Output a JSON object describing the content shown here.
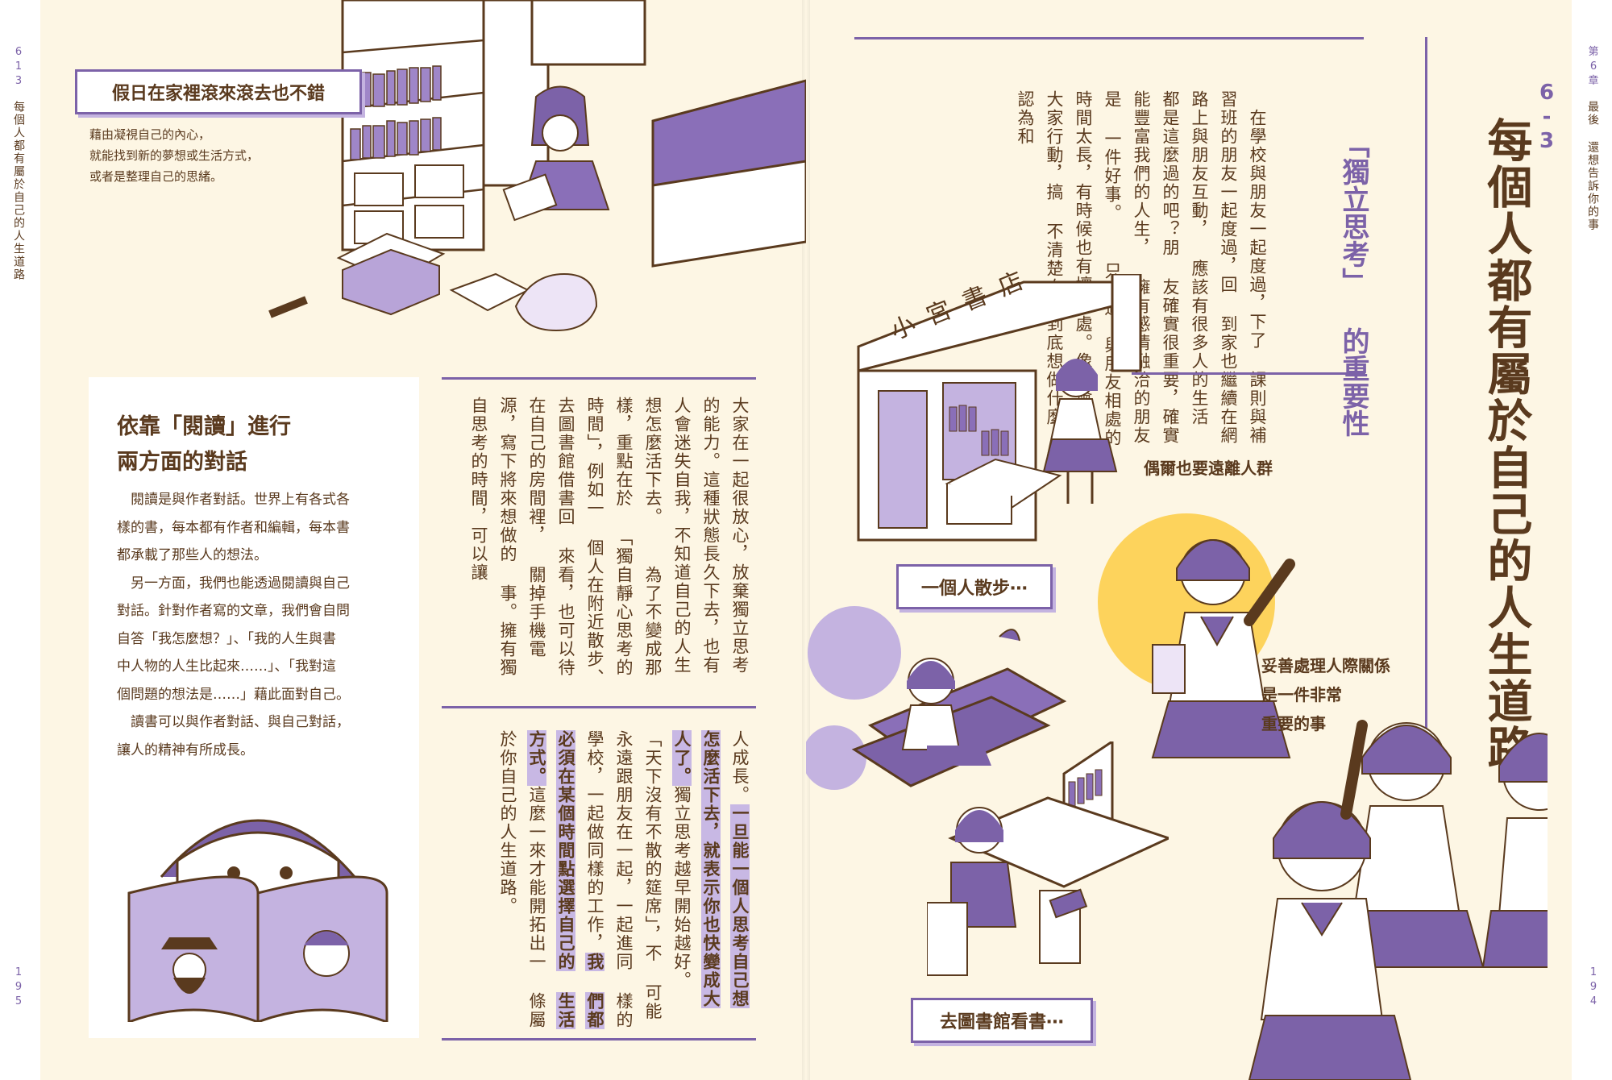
{
  "left_page": {
    "side_label": "每個人都有屬於自己的人生道路",
    "section_code": "613",
    "page_number": "195",
    "caption_title": "假日在家裡滾來滾去也不錯",
    "caption_text": [
      "藉由凝視自己的內心，",
      "就能找到新的夢想或生活方式，",
      "或者是整理自己的思緒。"
    ],
    "sidebar_title_1": "依靠「閱讀」進行",
    "sidebar_title_2": "兩方面的對話",
    "sidebar_lines": [
      "　閱讀是與作者對話。世界上有各式各",
      "樣的書，每本都有作者和編輯，每本書",
      "都承載了那些人的想法。",
      "　另一方面，我們也能透過閱讀與自己",
      "對話。針對作者寫的文章，我們會自問",
      "自答「我怎麼想？」、「我的人生與書",
      "中人物的人生比起來……」、「我對這",
      "個問題的想法是……」藉此面對自己。",
      "　讀書可以與作者對話、與自己對話，",
      "讓人的精神有所成長。"
    ],
    "col_upper": [
      "大家在一起很放心，放棄獨立思考",
      "的能力。這種狀態長久下去，也有",
      "人會迷失自我，不知道自己的人生",
      "想怎麼活下去。",
      "　為了不變成那樣，重點在於",
      "「獨自靜心思考的時間」，例如一",
      "個人在附近散步、去圖書館借書回",
      "來看，也可以待在自己的房間裡，",
      "關掉手機電源，寫下將來想做的",
      "事。擁有獨自思考的時間，可以讓"
    ]
  },
  "right_page": {
    "side_chapter": "第6章",
    "side_text": "最後 還想告訴你的事",
    "page_number": "194",
    "section_number": "6-3",
    "main_title": "每個人都有屬於自己的人生道路",
    "subhead_1": "「獨立思考」",
    "subhead_2": "的重要性",
    "col_right": [
      "　在學校與朋友一起度過，下了",
      "課則與補習班的朋友一起度過，回",
      "到家也繼續在網路上與朋友互動，",
      "應該有很多人的生活",
      "都是這麼過的吧？朋",
      "友確實很重要，確實",
      "能豐富我們的人生，",
      "擁有感情融洽的朋友是",
      "一件好事。",
      "　只不過，與朋友相處的",
      "時間太長，有時候也有壞",
      "處。像是會配合大家行動，搞",
      "不清楚自己到底想做什麼，認為和"
    ],
    "shop_sign": "小宮書店",
    "caption_away": "偶爾也要遠離人群",
    "caption_relation": [
      "妥善處理人際關係",
      "是一件非常",
      "重要的事"
    ],
    "label_walk": "一個人散步⋯",
    "label_library": "去圖書館看書⋯"
  },
  "lower_center": {
    "col_1_a": "人成長。",
    "col_1_b": "一旦能一個人思考自己想",
    "col_2": "怎麼活下去，就表示你也快變成大",
    "col_3_a": "人了。",
    "col_3_b": "獨立思考越早開始越好。",
    "col_4": "　「天下沒有不散的筵席」，不",
    "col_5": "可能永遠跟朋友在一起，一起進同",
    "col_6_a": "樣的學校，一起做同樣的工作，",
    "col_6_b": "我",
    "col_7": "們都必須在某個時間點選擇自己的",
    "col_8_a": "生活方式。",
    "col_8_b": "這麼一來才能開拓出一",
    "col_9": "條屬於你自己的人生道路。"
  },
  "colors": {
    "paper": "#fdf6e4",
    "purple": "#7c62a8",
    "light_purple": "#c4b3e0",
    "brown_text": "#5a3a1e",
    "yellow_sun": "#fdd35c"
  }
}
